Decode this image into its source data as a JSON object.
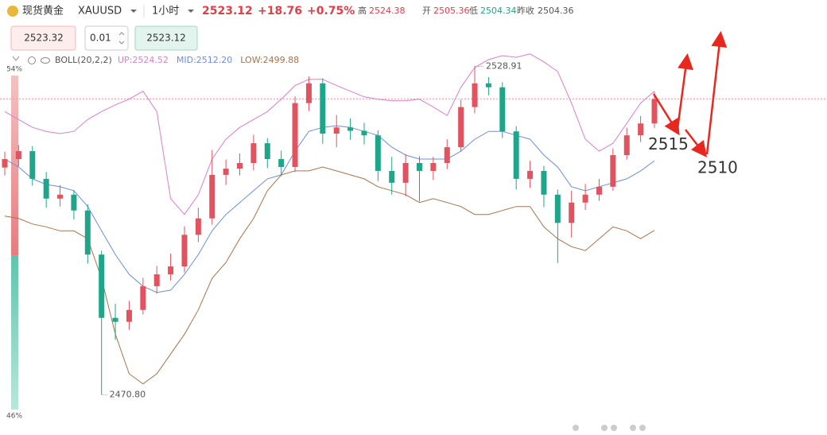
{
  "header": {
    "name": "现货黄金",
    "symbol": "XAUUSD",
    "interval": "1小时",
    "price": "2523.12",
    "change": "+18.76",
    "change_pct": "+0.75%",
    "high_label": "高",
    "high": "2524.38",
    "open_label": "开",
    "open": "2505.36",
    "low_label": "低",
    "low": "2504.34",
    "prev_close_label": "昨收",
    "prev_close": "2504.36"
  },
  "order": {
    "sell": "2523.32",
    "lots": "0.01",
    "buy": "2523.12"
  },
  "sentiment": {
    "top": {
      "value": 54,
      "label": "54%"
    },
    "bottom": {
      "value": 46,
      "label": "46%"
    }
  },
  "chart_data": {
    "type": "candlestick",
    "indicator": "BOLL(20,2,2)",
    "up_color": "#e0535f",
    "down_color": "#1fa68a",
    "open": [
      2511.0,
      2512.5,
      2513.9,
      2509.0,
      2505.5,
      2506.2,
      2503.4,
      2495.6,
      2484.4,
      2483.7,
      2485.8,
      2490.0,
      2492.1,
      2493.5,
      2499.1,
      2502.0,
      2509.7,
      2510.8,
      2511.8,
      2515.3,
      2512.5,
      2511.1,
      2522.4,
      2525.9,
      2517.0,
      2518.1,
      2517.5,
      2516.7,
      2510.4,
      2508.3,
      2511.8,
      2510.4,
      2511.8,
      2514.6,
      2521.7,
      2525.9,
      2525.2,
      2517.4,
      2509.0,
      2510.4,
      2506.2,
      2501.2,
      2504.8,
      2506.2,
      2507.6,
      2513.2,
      2516.7,
      2518.8
    ],
    "high": [
      2513.8,
      2515.0,
      2514.8,
      2510.2,
      2507.9,
      2507.0,
      2504.5,
      2496.3,
      2486.9,
      2487.4,
      2491.5,
      2493.6,
      2495.8,
      2500.6,
      2503.9,
      2514.1,
      2512.4,
      2513.5,
      2516.8,
      2516.2,
      2514.0,
      2523.6,
      2527.1,
      2526.8,
      2520.3,
      2519.7,
      2518.9,
      2517.6,
      2512.9,
      2513.4,
      2513.0,
      2512.9,
      2516.0,
      2523.0,
      2528.91,
      2527.0,
      2526.1,
      2518.3,
      2512.2,
      2511.3,
      2507.1,
      2506.9,
      2508.1,
      2509.0,
      2514.4,
      2518.0,
      2520.1,
      2524.38
    ],
    "low": [
      2509.6,
      2511.2,
      2507.8,
      2503.9,
      2504.1,
      2501.8,
      2494.0,
      2470.8,
      2480.5,
      2482.3,
      2485.0,
      2488.7,
      2491.0,
      2492.4,
      2497.8,
      2500.9,
      2507.9,
      2509.6,
      2510.5,
      2510.9,
      2509.5,
      2510.2,
      2521.0,
      2515.2,
      2514.6,
      2515.9,
      2515.1,
      2508.6,
      2506.2,
      2505.9,
      2505.0,
      2508.8,
      2510.7,
      2513.8,
      2520.6,
      2523.8,
      2516.2,
      2507.1,
      2507.4,
      2504.0,
      2494.1,
      2498.6,
      2503.5,
      2505.1,
      2506.9,
      2512.4,
      2515.5,
      2518.0
    ],
    "close": [
      2512.5,
      2513.9,
      2509.0,
      2505.5,
      2506.2,
      2503.4,
      2495.6,
      2484.4,
      2483.7,
      2485.8,
      2490.0,
      2492.1,
      2493.5,
      2499.1,
      2502.0,
      2509.7,
      2510.8,
      2511.8,
      2515.3,
      2512.5,
      2511.1,
      2522.4,
      2525.9,
      2517.0,
      2518.1,
      2517.5,
      2516.7,
      2510.4,
      2508.3,
      2511.8,
      2510.4,
      2511.8,
      2514.6,
      2521.7,
      2525.9,
      2525.2,
      2517.4,
      2509.0,
      2510.4,
      2506.2,
      2501.2,
      2504.8,
      2506.2,
      2507.6,
      2513.2,
      2516.7,
      2518.8,
      2523.12
    ],
    "series": [
      {
        "label": "UP:2524.52",
        "color": "#d77fcf",
        "values": [
          2520.9,
          2519.5,
          2518.1,
          2517.4,
          2517.0,
          2517.4,
          2519.5,
          2520.9,
          2522.1,
          2523.1,
          2524.5,
          2520.9,
          2505.5,
          2502.7,
          2506.2,
          2512.5,
          2516.0,
          2518.1,
          2519.5,
          2520.9,
          2523.1,
          2525.5,
          2526.6,
          2526.6,
          2525.5,
          2524.5,
          2523.5,
          2523.1,
          2522.8,
          2522.8,
          2523.1,
          2521.7,
          2520.2,
          2525.2,
          2528.7,
          2530.1,
          2530.8,
          2530.5,
          2531.1,
          2529.7,
          2528.0,
          2522.4,
          2516.0,
          2513.9,
          2515.3,
          2518.8,
          2522.4,
          2524.52
        ]
      },
      {
        "label": "MID:2512.20",
        "color": "#6a8fd8",
        "values": [
          2512.5,
          2511.1,
          2509.0,
          2508.0,
          2507.6,
          2506.9,
          2504.1,
          2499.8,
          2495.6,
          2492.1,
          2490.0,
          2488.9,
          2489.3,
          2492.1,
          2495.6,
          2499.8,
          2502.7,
          2504.8,
          2506.9,
          2509.0,
          2509.7,
          2513.9,
          2517.4,
          2518.1,
          2518.4,
          2518.1,
          2517.4,
          2516.7,
          2514.6,
          2513.2,
          2512.5,
          2512.5,
          2512.5,
          2513.9,
          2516.0,
          2517.4,
          2517.4,
          2516.7,
          2516.0,
          2513.2,
          2511.1,
          2507.6,
          2506.9,
          2507.6,
          2508.3,
          2509.0,
          2510.4,
          2512.2
        ]
      },
      {
        "label": "LOW:2499.88",
        "color": "#a8734a",
        "values": [
          2502.4,
          2502.0,
          2501.0,
          2500.5,
          2499.8,
          2499.8,
          2498.4,
          2491.4,
          2481.5,
          2474.5,
          2472.7,
          2474.5,
          2478.0,
          2481.5,
          2485.8,
          2491.4,
          2494.2,
          2498.4,
          2502.0,
          2506.9,
          2509.7,
          2510.4,
          2510.4,
          2511.1,
          2510.4,
          2509.7,
          2509.0,
          2507.6,
          2506.9,
          2506.2,
          2504.8,
          2505.5,
          2504.8,
          2504.1,
          2502.7,
          2502.7,
          2503.4,
          2504.1,
          2504.1,
          2500.5,
          2498.4,
          2497.0,
          2496.3,
          2498.4,
          2500.5,
          2499.8,
          2498.4,
          2499.88
        ]
      }
    ],
    "max_label": {
      "value": 2528.91,
      "label": "2528.91"
    },
    "min_label": {
      "value": 2470.8,
      "label": "2470.80"
    },
    "annotations": [
      2515,
      2510
    ],
    "ylim": [
      2465.5,
      2531.5
    ]
  }
}
